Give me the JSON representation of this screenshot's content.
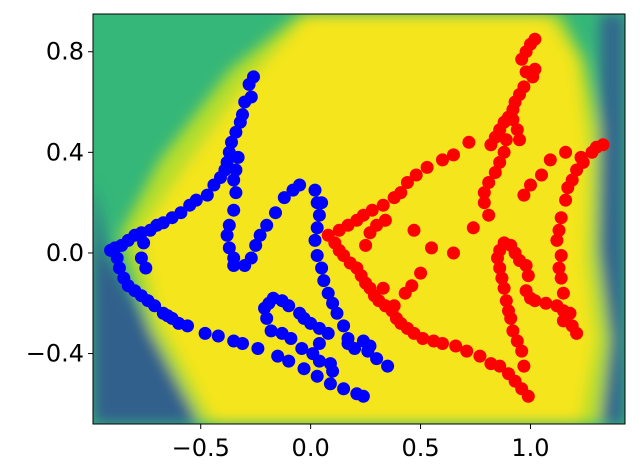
{
  "chart_data": {
    "type": "scatter",
    "title": "",
    "xlabel": "",
    "ylabel": "",
    "xlim": [
      -0.99,
      1.43
    ],
    "ylim": [
      -0.68,
      0.95
    ],
    "grid": false,
    "legend": "none",
    "x_ticks": [
      -0.5,
      0.0,
      0.5,
      1.0
    ],
    "x_tick_labels": [
      "−0.5",
      "0.0",
      "0.5",
      "1.0"
    ],
    "y_ticks": [
      0.8,
      0.4,
      0.0,
      -0.4
    ],
    "y_tick_labels": [
      "0.8",
      "0.4",
      "0.0",
      "−0.4"
    ],
    "background": {
      "kind": "filled contour (decision surface)",
      "colormap": "viridis",
      "inner_color": "#f5e51f",
      "edge_color": "#3a4d8b",
      "middle_color": "#35b779"
    },
    "series": [
      {
        "color": "#0000ff",
        "points": [
          [
            -0.26,
            0.7
          ],
          [
            -0.28,
            0.67
          ],
          [
            -0.3,
            0.6
          ],
          [
            -0.31,
            0.55
          ],
          [
            -0.32,
            0.52
          ],
          [
            -0.34,
            0.48
          ],
          [
            -0.36,
            0.44
          ],
          [
            -0.37,
            0.4
          ],
          [
            -0.38,
            0.36
          ],
          [
            -0.39,
            0.33
          ],
          [
            -0.41,
            0.3
          ],
          [
            -0.44,
            0.27
          ],
          [
            -0.47,
            0.23
          ],
          [
            -0.52,
            0.21
          ],
          [
            -0.55,
            0.19
          ],
          [
            -0.59,
            0.16
          ],
          [
            -0.63,
            0.14
          ],
          [
            -0.67,
            0.12
          ],
          [
            -0.7,
            0.11
          ],
          [
            -0.73,
            0.09
          ],
          [
            -0.77,
            0.08
          ],
          [
            -0.8,
            0.07
          ],
          [
            -0.83,
            0.05
          ],
          [
            -0.86,
            0.03
          ],
          [
            -0.89,
            0.02
          ],
          [
            -0.91,
            0.01
          ],
          [
            -0.88,
            -0.02
          ],
          [
            -0.87,
            -0.06
          ],
          [
            -0.85,
            -0.1
          ],
          [
            -0.83,
            -0.13
          ],
          [
            -0.8,
            -0.15
          ],
          [
            -0.77,
            -0.17
          ],
          [
            -0.74,
            -0.19
          ],
          [
            -0.71,
            -0.21
          ],
          [
            -0.67,
            -0.24
          ],
          [
            -0.65,
            -0.25
          ],
          [
            -0.63,
            -0.26
          ],
          [
            -0.6,
            -0.28
          ],
          [
            -0.56,
            -0.29
          ],
          [
            -0.48,
            -0.32
          ],
          [
            -0.42,
            -0.33
          ],
          [
            -0.35,
            -0.35
          ],
          [
            -0.31,
            -0.36
          ],
          [
            -0.24,
            -0.38
          ],
          [
            -0.15,
            -0.41
          ],
          [
            -0.1,
            -0.43
          ],
          [
            -0.03,
            -0.46
          ],
          [
            0.03,
            -0.49
          ],
          [
            0.09,
            -0.52
          ],
          [
            0.15,
            -0.54
          ],
          [
            0.21,
            -0.56
          ],
          [
            0.24,
            -0.57
          ],
          [
            -0.76,
            0.04
          ],
          [
            -0.77,
            -0.02
          ],
          [
            -0.75,
            -0.06
          ],
          [
            -0.27,
            0.62
          ],
          [
            -0.33,
            0.38
          ],
          [
            -0.34,
            0.33
          ],
          [
            -0.35,
            0.29
          ],
          [
            -0.34,
            0.24
          ],
          [
            -0.35,
            0.17
          ],
          [
            -0.37,
            0.11
          ],
          [
            -0.38,
            0.07
          ],
          [
            -0.37,
            0.02
          ],
          [
            -0.35,
            -0.02
          ],
          [
            -0.35,
            -0.05
          ],
          [
            -0.3,
            -0.05
          ],
          [
            -0.27,
            -0.02
          ],
          [
            -0.25,
            0.03
          ],
          [
            -0.23,
            0.07
          ],
          [
            -0.2,
            0.11
          ],
          [
            -0.16,
            0.16
          ],
          [
            -0.12,
            0.22
          ],
          [
            -0.08,
            0.25
          ],
          [
            -0.05,
            0.27
          ],
          [
            0.02,
            0.25
          ],
          [
            0.03,
            0.2
          ],
          [
            0.05,
            0.2
          ],
          [
            0.04,
            0.15
          ],
          [
            0.03,
            0.1
          ],
          [
            0.02,
            0.05
          ],
          [
            0.03,
            -0.01
          ],
          [
            0.05,
            -0.06
          ],
          [
            0.06,
            -0.11
          ],
          [
            0.08,
            -0.16
          ],
          [
            0.1,
            -0.2
          ],
          [
            0.12,
            -0.24
          ],
          [
            0.15,
            -0.29
          ],
          [
            0.17,
            -0.34
          ],
          [
            0.2,
            -0.38
          ],
          [
            0.26,
            -0.39
          ],
          [
            0.3,
            -0.42
          ],
          [
            0.35,
            -0.45
          ],
          [
            0.27,
            -0.37
          ],
          [
            0.24,
            -0.35
          ],
          [
            0.17,
            -0.36
          ],
          [
            0.08,
            -0.32
          ],
          [
            0.04,
            -0.3
          ],
          [
            0.0,
            -0.28
          ],
          [
            -0.03,
            -0.26
          ],
          [
            -0.05,
            -0.24
          ],
          [
            -0.1,
            -0.21
          ],
          [
            -0.13,
            -0.19
          ],
          [
            -0.17,
            -0.18
          ],
          [
            -0.19,
            -0.2
          ],
          [
            -0.21,
            -0.22
          ],
          [
            -0.2,
            -0.26
          ],
          [
            -0.18,
            -0.31
          ],
          [
            -0.13,
            -0.32
          ],
          [
            -0.09,
            -0.34
          ],
          [
            -0.04,
            -0.38
          ],
          [
            0.01,
            -0.4
          ],
          [
            0.04,
            -0.43
          ],
          [
            0.09,
            -0.44
          ],
          [
            0.04,
            -0.36
          ],
          [
            0.1,
            -0.47
          ]
        ]
      },
      {
        "color": "#ff0000",
        "points": [
          [
            1.02,
            0.85
          ],
          [
            1.0,
            0.83
          ],
          [
            0.98,
            0.8
          ],
          [
            0.96,
            0.77
          ],
          [
            1.02,
            0.73
          ],
          [
            1.01,
            0.7
          ],
          [
            0.98,
            0.72
          ],
          [
            0.97,
            0.66
          ],
          [
            0.95,
            0.63
          ],
          [
            0.93,
            0.6
          ],
          [
            0.92,
            0.57
          ],
          [
            0.9,
            0.54
          ],
          [
            0.88,
            0.52
          ],
          [
            0.86,
            0.49
          ],
          [
            0.84,
            0.46
          ],
          [
            0.82,
            0.43
          ],
          [
            0.95,
            0.45
          ],
          [
            0.94,
            0.49
          ],
          [
            0.92,
            0.53
          ],
          [
            0.89,
            0.45
          ],
          [
            0.88,
            0.4
          ],
          [
            0.86,
            0.36
          ],
          [
            0.84,
            0.32
          ],
          [
            0.81,
            0.28
          ],
          [
            0.79,
            0.24
          ],
          [
            0.79,
            0.2
          ],
          [
            0.81,
            0.15
          ],
          [
            0.72,
            0.44
          ],
          [
            0.65,
            0.39
          ],
          [
            0.6,
            0.37
          ],
          [
            0.53,
            0.34
          ],
          [
            0.48,
            0.31
          ],
          [
            0.44,
            0.28
          ],
          [
            0.41,
            0.24
          ],
          [
            0.38,
            0.22
          ],
          [
            0.33,
            0.19
          ],
          [
            0.28,
            0.17
          ],
          [
            0.24,
            0.15
          ],
          [
            0.21,
            0.13
          ],
          [
            0.17,
            0.11
          ],
          [
            0.13,
            0.09
          ],
          [
            0.08,
            0.07
          ],
          [
            0.11,
            0.04
          ],
          [
            0.13,
            0.01
          ],
          [
            0.15,
            -0.01
          ],
          [
            0.18,
            -0.04
          ],
          [
            0.21,
            -0.06
          ],
          [
            0.23,
            -0.09
          ],
          [
            0.25,
            -0.12
          ],
          [
            0.27,
            -0.14
          ],
          [
            0.29,
            -0.17
          ],
          [
            0.31,
            -0.19
          ],
          [
            0.34,
            -0.21
          ],
          [
            0.37,
            -0.23
          ],
          [
            0.39,
            -0.26
          ],
          [
            0.41,
            -0.28
          ],
          [
            0.44,
            -0.3
          ],
          [
            0.47,
            -0.32
          ],
          [
            0.51,
            -0.34
          ],
          [
            0.56,
            -0.35
          ],
          [
            0.6,
            -0.36
          ],
          [
            0.66,
            -0.37
          ],
          [
            0.71,
            -0.39
          ],
          [
            0.77,
            -0.41
          ],
          [
            0.82,
            -0.44
          ],
          [
            0.86,
            -0.45
          ],
          [
            0.9,
            -0.48
          ],
          [
            0.93,
            -0.51
          ],
          [
            0.96,
            -0.54
          ],
          [
            0.99,
            -0.57
          ],
          [
            0.97,
            -0.45
          ],
          [
            0.96,
            -0.39
          ],
          [
            0.94,
            -0.35
          ],
          [
            0.92,
            -0.31
          ],
          [
            0.91,
            -0.26
          ],
          [
            0.9,
            -0.23
          ],
          [
            0.89,
            -0.19
          ],
          [
            0.88,
            -0.14
          ],
          [
            0.87,
            -0.1
          ],
          [
            0.86,
            -0.06
          ],
          [
            0.85,
            -0.02
          ],
          [
            0.86,
            0.01
          ],
          [
            0.88,
            0.04
          ],
          [
            0.91,
            0.03
          ],
          [
            0.93,
            0.0
          ],
          [
            0.95,
            -0.03
          ],
          [
            0.98,
            -0.05
          ],
          [
            0.99,
            -0.09
          ],
          [
            0.98,
            -0.15
          ],
          [
            1.0,
            -0.18
          ],
          [
            1.02,
            -0.19
          ],
          [
            1.07,
            -0.2
          ],
          [
            1.12,
            -0.21
          ],
          [
            1.15,
            -0.23
          ],
          [
            1.15,
            -0.27
          ],
          [
            1.19,
            -0.29
          ],
          [
            1.21,
            -0.32
          ],
          [
            1.18,
            -0.24
          ],
          [
            1.15,
            -0.16
          ],
          [
            1.14,
            -0.1
          ],
          [
            1.13,
            -0.06
          ],
          [
            1.14,
            -0.01
          ],
          [
            1.12,
            0.05
          ],
          [
            1.13,
            0.09
          ],
          [
            1.14,
            0.14
          ],
          [
            1.16,
            0.21
          ],
          [
            1.17,
            0.26
          ],
          [
            1.19,
            0.29
          ],
          [
            1.21,
            0.33
          ],
          [
            1.23,
            0.38
          ],
          [
            1.24,
            0.36
          ],
          [
            1.28,
            0.4
          ],
          [
            1.3,
            0.42
          ],
          [
            1.33,
            0.43
          ],
          [
            1.16,
            0.4
          ],
          [
            1.09,
            0.37
          ],
          [
            1.05,
            0.31
          ],
          [
            1.0,
            0.27
          ],
          [
            0.97,
            0.23
          ],
          [
            0.74,
            0.1
          ],
          [
            0.65,
            0.0
          ],
          [
            0.55,
            0.02
          ],
          [
            0.47,
            0.09
          ],
          [
            0.5,
            -0.08
          ],
          [
            0.46,
            -0.13
          ],
          [
            0.43,
            -0.16
          ],
          [
            0.38,
            -0.21
          ],
          [
            0.33,
            -0.14
          ],
          [
            0.25,
            0.03
          ],
          [
            0.27,
            0.08
          ],
          [
            0.3,
            0.11
          ],
          [
            0.34,
            0.13
          ]
        ]
      }
    ]
  }
}
